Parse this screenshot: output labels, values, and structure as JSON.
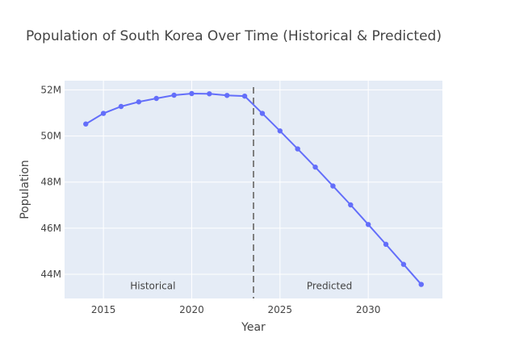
{
  "chart_data": {
    "type": "line",
    "title": "Population of South Korea Over Time (Historical & Predicted)",
    "xlabel": "Year",
    "ylabel": "Population",
    "xlim": [
      2012.8,
      2034.2
    ],
    "ylim": [
      42950000,
      52400000
    ],
    "grid": true,
    "x_ticks": [
      2015,
      2020,
      2025,
      2030
    ],
    "x_tick_labels": [
      "2015",
      "2020",
      "2025",
      "2030"
    ],
    "y_ticks": [
      44000000,
      46000000,
      48000000,
      50000000,
      52000000
    ],
    "y_tick_labels": [
      "44M",
      "46M",
      "48M",
      "50M",
      "52M"
    ],
    "series": [
      {
        "color": "#636efa",
        "x": [
          2014,
          2015,
          2016,
          2017,
          2018,
          2019,
          2020,
          2021,
          2022,
          2023,
          2024,
          2025,
          2026,
          2027,
          2028,
          2029,
          2030,
          2031,
          2032,
          2033
        ],
        "y": [
          50520000,
          50980000,
          51280000,
          51480000,
          51630000,
          51770000,
          51840000,
          51830000,
          51760000,
          51730000,
          50980000,
          50220000,
          49440000,
          48650000,
          47830000,
          47010000,
          46160000,
          45300000,
          44430000,
          43560000
        ]
      }
    ],
    "vline": {
      "x": 2023.5,
      "color": "#7f7f7f",
      "dash": "dash"
    },
    "annotations": [
      {
        "text": "Historical",
        "x": 2017.8,
        "y": 43500000
      },
      {
        "text": "Predicted",
        "x": 2027.8,
        "y": 43500000
      }
    ],
    "colors": {
      "plot_bg": "#e5ecf6",
      "grid": "#ffffff",
      "line": "#636efa",
      "text": "#444444"
    }
  }
}
